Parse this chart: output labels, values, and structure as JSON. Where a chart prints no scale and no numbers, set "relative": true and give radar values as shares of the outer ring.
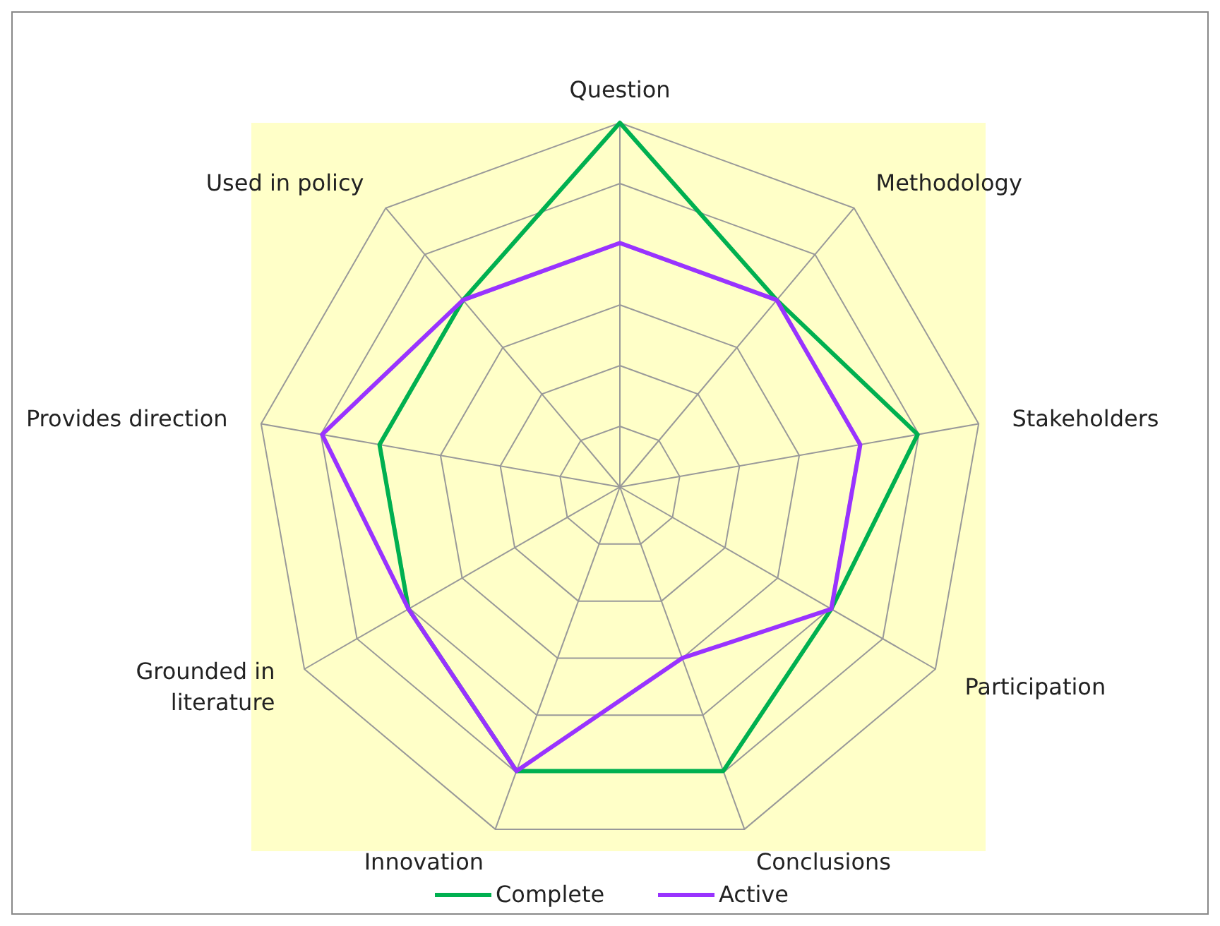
{
  "chart_data": {
    "type": "radar",
    "relative": true,
    "categories": [
      "Question",
      "Methodology",
      "Stakeholders",
      "Participation",
      "Conclusions",
      "Innovation",
      "Grounded in literature",
      "Provides direction",
      "Used in policy"
    ],
    "series": [
      {
        "name": "Complete",
        "color": "#00b050",
        "values": [
          1,
          0.67,
          0.83,
          0.67,
          0.83,
          0.83,
          0.67,
          0.67,
          0.67
        ]
      },
      {
        "name": "Active",
        "color": "#9933ff",
        "values": [
          0.67,
          0.67,
          0.67,
          0.67,
          0.5,
          0.83,
          0.67,
          0.83,
          0.67
        ]
      }
    ],
    "legend": "bottom"
  }
}
